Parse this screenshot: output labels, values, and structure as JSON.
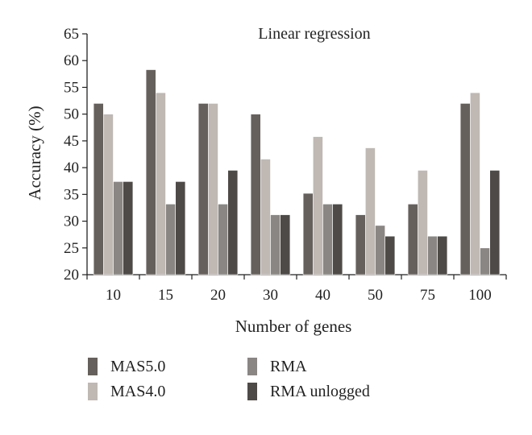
{
  "chart_data": {
    "type": "bar",
    "title": "Linear regression",
    "xlabel": "Number of genes",
    "ylabel": "Accuracy (%)",
    "categories": [
      "10",
      "15",
      "20",
      "30",
      "40",
      "50",
      "75",
      "100"
    ],
    "ylim": [
      20,
      65
    ],
    "yticks": [
      20,
      25,
      30,
      35,
      40,
      45,
      50,
      55,
      60,
      65
    ],
    "grid": false,
    "legend_position": "bottom",
    "series": [
      {
        "name": "MAS5.0",
        "color": "#66605c",
        "values": [
          52,
          58.3,
          52,
          50,
          35.2,
          31.2,
          33.2,
          52
        ]
      },
      {
        "name": "MAS4.0",
        "color": "#bfb8b3",
        "values": [
          50,
          54,
          52,
          41.6,
          45.8,
          43.7,
          39.5,
          54
        ]
      },
      {
        "name": "RMA",
        "color": "#8a8683",
        "values": [
          37.4,
          33.2,
          33.2,
          31.2,
          33.2,
          29.2,
          27.2,
          25
        ]
      },
      {
        "name": "RMA unlogged",
        "color": "#4e4a47",
        "values": [
          37.4,
          37.4,
          39.5,
          31.2,
          33.2,
          27.2,
          27.2,
          39.5
        ]
      }
    ]
  }
}
